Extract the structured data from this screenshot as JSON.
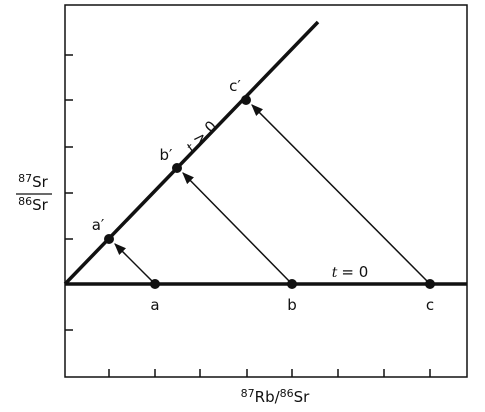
{
  "y_axis_label": {
    "numerator": {
      "mass": "87",
      "element": "Sr"
    },
    "denominator": {
      "mass": "86",
      "element": "Sr"
    }
  },
  "x_axis_label": {
    "numerator": {
      "mass": "87",
      "element": "Rb"
    },
    "separator": "/",
    "denominator": {
      "mass": "86",
      "element": "Sr"
    }
  },
  "lines": [
    {
      "variable": "t",
      "relation": "= 0"
    },
    {
      "variable": "t",
      "relation": "> 0"
    }
  ],
  "points": [
    {
      "label": "a",
      "shifted_label": "a′"
    },
    {
      "label": "b",
      "shifted_label": "b′"
    },
    {
      "label": "c",
      "shifted_label": "c′"
    }
  ]
}
